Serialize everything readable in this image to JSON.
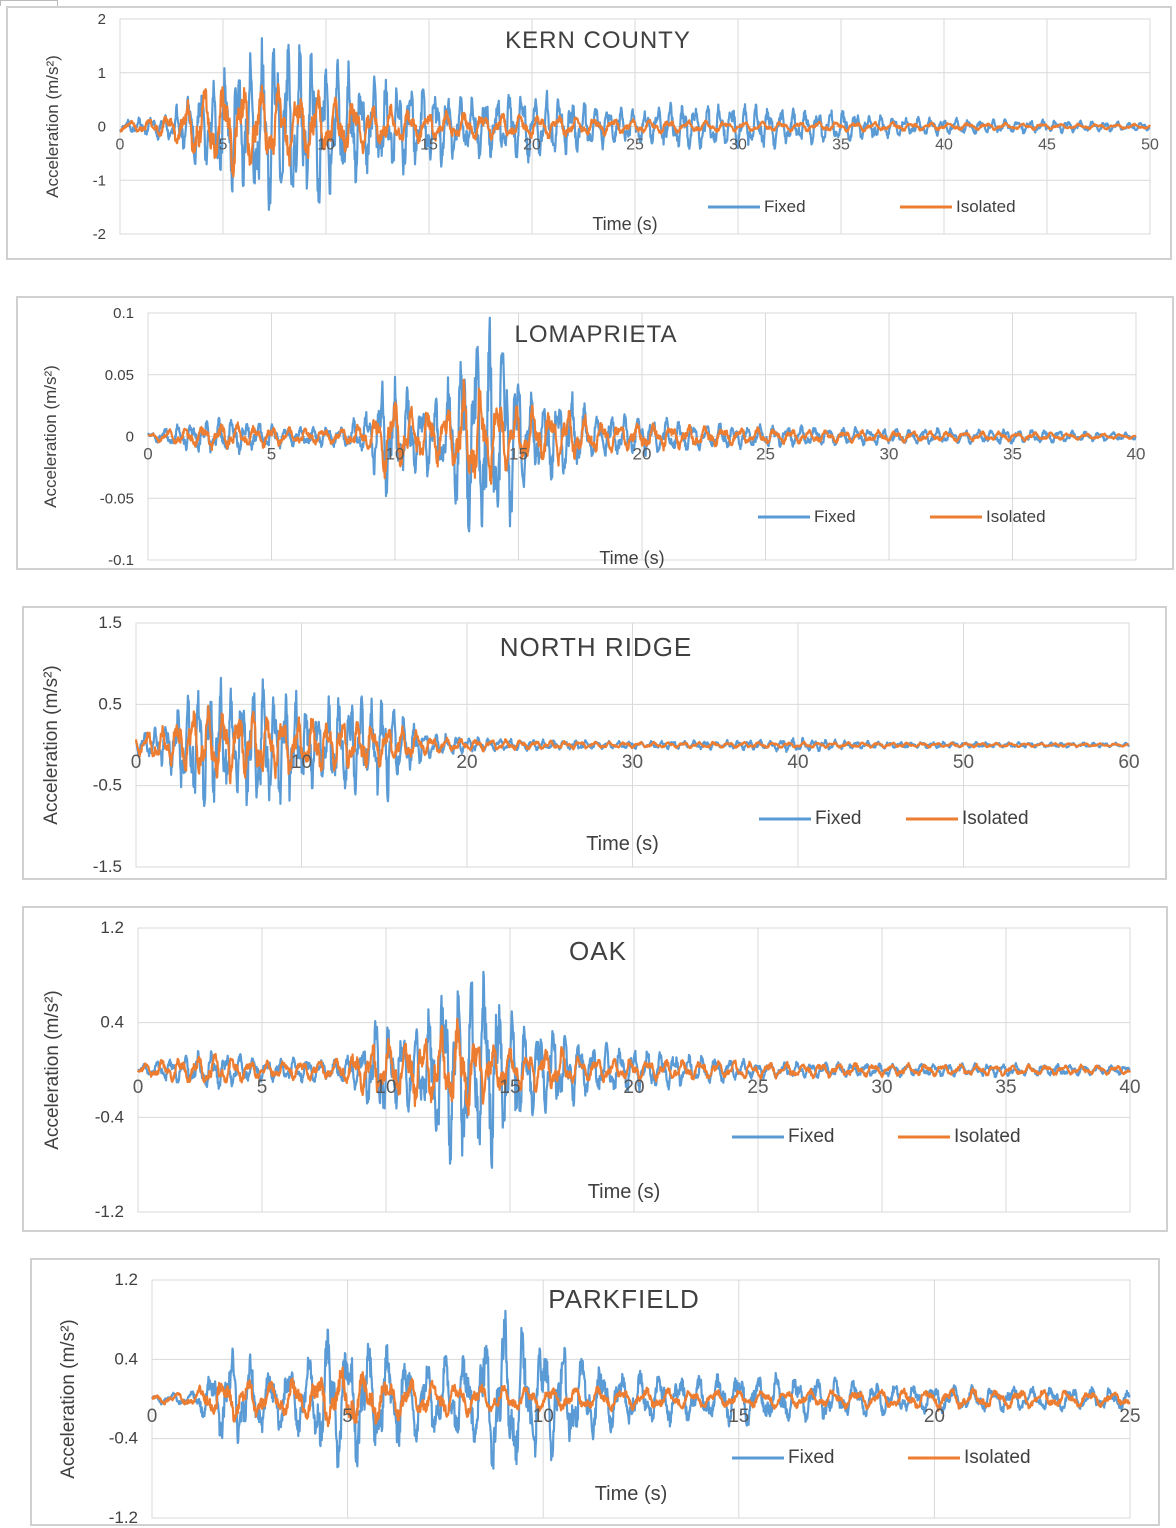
{
  "chart_data": [
    {
      "type": "line",
      "title": "KERN COUNTY",
      "xlabel": "Time (s)",
      "ylabel": "Acceleration (m/s²)",
      "xlim": [
        0,
        50
      ],
      "ylim": [
        -2,
        2
      ],
      "x_ticks": [
        "0",
        "5",
        "10",
        "15",
        "20",
        "25",
        "30",
        "35",
        "40",
        "45",
        "50"
      ],
      "y_ticks": [
        "2",
        "1",
        "0",
        "-1",
        "-2"
      ],
      "grid": true,
      "legend": "bottom-right",
      "series": [
        {
          "name": "Fixed",
          "color": "#5b9bd5",
          "period": 0.6,
          "envelope": [
            [
              0,
              0.1
            ],
            [
              2.5,
              0.3
            ],
            [
              4,
              0.9
            ],
            [
              6,
              1.4
            ],
            [
              7.5,
              1.9
            ],
            [
              10,
              1.5
            ],
            [
              12,
              1.0
            ],
            [
              15,
              0.9
            ],
            [
              17,
              0.6
            ],
            [
              20,
              0.7
            ],
            [
              23,
              0.45
            ],
            [
              25,
              0.35
            ],
            [
              27,
              0.45
            ],
            [
              30,
              0.5
            ],
            [
              33,
              0.35
            ],
            [
              35,
              0.35
            ],
            [
              38,
              0.2
            ],
            [
              42,
              0.15
            ],
            [
              46,
              0.12
            ],
            [
              50,
              0.08
            ]
          ]
        },
        {
          "name": "Isolated",
          "color": "#ed7d31",
          "period": 0.9,
          "envelope": [
            [
              0,
              0.1
            ],
            [
              2.5,
              0.25
            ],
            [
              4,
              0.8
            ],
            [
              6,
              0.95
            ],
            [
              8,
              0.8
            ],
            [
              10,
              0.65
            ],
            [
              13,
              0.4
            ],
            [
              15,
              0.3
            ],
            [
              20,
              0.25
            ],
            [
              25,
              0.15
            ],
            [
              30,
              0.1
            ],
            [
              35,
              0.1
            ],
            [
              40,
              0.08
            ],
            [
              45,
              0.06
            ],
            [
              50,
              0.05
            ]
          ]
        }
      ]
    },
    {
      "type": "line",
      "title": "LOMAPRIETA",
      "xlabel": "Time (s)",
      "ylabel": "Acceleration (m/s²)",
      "xlim": [
        0,
        40
      ],
      "ylim": [
        -0.1,
        0.1
      ],
      "x_ticks": [
        "0",
        "5",
        "10",
        "15",
        "20",
        "25",
        "30",
        "35",
        "40"
      ],
      "y_ticks": [
        "0.1",
        "0.05",
        "0",
        "-0.05",
        "-0.1"
      ],
      "grid": true,
      "legend": "bottom-right",
      "series": [
        {
          "name": "Fixed",
          "color": "#5b9bd5",
          "period": 0.55,
          "envelope": [
            [
              0,
              0.003
            ],
            [
              1,
              0.01
            ],
            [
              3,
              0.017
            ],
            [
              6,
              0.008
            ],
            [
              8,
              0.01
            ],
            [
              9,
              0.025
            ],
            [
              9.5,
              0.055
            ],
            [
              11,
              0.035
            ],
            [
              12,
              0.035
            ],
            [
              12.5,
              0.075
            ],
            [
              13.5,
              0.1
            ],
            [
              14.5,
              0.09
            ],
            [
              15.5,
              0.035
            ],
            [
              17,
              0.04
            ],
            [
              18,
              0.02
            ],
            [
              20,
              0.018
            ],
            [
              22,
              0.012
            ],
            [
              25,
              0.01
            ],
            [
              30,
              0.007
            ],
            [
              35,
              0.007
            ],
            [
              40,
              0.003
            ]
          ]
        },
        {
          "name": "Isolated",
          "color": "#ed7d31",
          "period": 0.7,
          "envelope": [
            [
              0,
              0.002
            ],
            [
              1,
              0.008
            ],
            [
              3,
              0.012
            ],
            [
              6,
              0.007
            ],
            [
              8,
              0.008
            ],
            [
              9,
              0.012
            ],
            [
              9.5,
              0.035
            ],
            [
              11,
              0.025
            ],
            [
              12,
              0.025
            ],
            [
              13,
              0.052
            ],
            [
              14,
              0.04
            ],
            [
              15,
              0.025
            ],
            [
              17,
              0.025
            ],
            [
              18,
              0.015
            ],
            [
              20,
              0.012
            ],
            [
              25,
              0.007
            ],
            [
              30,
              0.005
            ],
            [
              35,
              0.004
            ],
            [
              40,
              0.002
            ]
          ]
        }
      ]
    },
    {
      "type": "line",
      "title": "NORTH RIDGE",
      "xlabel": "Time (s)",
      "ylabel": "Acceleration (m/s²)",
      "xlim": [
        0,
        60
      ],
      "ylim": [
        -1.5,
        1.5
      ],
      "x_ticks": [
        "0",
        "10",
        "20",
        "30",
        "40",
        "50",
        "60"
      ],
      "y_ticks": [
        "1.5",
        "0.5",
        "-0.5",
        "-1.5"
      ],
      "grid": true,
      "legend": "bottom-right",
      "series": [
        {
          "name": "Fixed",
          "color": "#5b9bd5",
          "period": 0.65,
          "envelope": [
            [
              0,
              0.15
            ],
            [
              2,
              0.3
            ],
            [
              3,
              0.8
            ],
            [
              5,
              0.9
            ],
            [
              6,
              0.65
            ],
            [
              7,
              0.95
            ],
            [
              8,
              0.8
            ],
            [
              9,
              0.85
            ],
            [
              10,
              0.6
            ],
            [
              11,
              0.5
            ],
            [
              12,
              0.65
            ],
            [
              13,
              0.75
            ],
            [
              14,
              0.55
            ],
            [
              15,
              0.75
            ],
            [
              16,
              0.45
            ],
            [
              18,
              0.15
            ],
            [
              20,
              0.12
            ],
            [
              22,
              0.08
            ],
            [
              30,
              0.05
            ],
            [
              36,
              0.06
            ],
            [
              40,
              0.09
            ],
            [
              44,
              0.05
            ],
            [
              50,
              0.04
            ],
            [
              60,
              0.03
            ]
          ]
        },
        {
          "name": "Isolated",
          "color": "#ed7d31",
          "period": 0.9,
          "envelope": [
            [
              0,
              0.15
            ],
            [
              2,
              0.25
            ],
            [
              3,
              0.45
            ],
            [
              6,
              0.5
            ],
            [
              9,
              0.4
            ],
            [
              12,
              0.35
            ],
            [
              15,
              0.3
            ],
            [
              18,
              0.12
            ],
            [
              20,
              0.08
            ],
            [
              30,
              0.04
            ],
            [
              40,
              0.04
            ],
            [
              50,
              0.03
            ],
            [
              60,
              0.02
            ]
          ]
        }
      ]
    },
    {
      "type": "line",
      "title": "OAK",
      "xlabel": "Time (s)",
      "ylabel": "Acceleration (m/s²)",
      "xlim": [
        0,
        40
      ],
      "ylim": [
        -1.2,
        1.2
      ],
      "x_ticks": [
        "0",
        "5",
        "10",
        "15",
        "20",
        "25",
        "30",
        "35",
        "40"
      ],
      "y_ticks": [
        "1.2",
        "0.4",
        "-0.4",
        "-1.2"
      ],
      "grid": true,
      "legend": "bottom-right",
      "series": [
        {
          "name": "Fixed",
          "color": "#5b9bd5",
          "period": 0.55,
          "envelope": [
            [
              0,
              0.05
            ],
            [
              1,
              0.1
            ],
            [
              3,
              0.18
            ],
            [
              5,
              0.1
            ],
            [
              8,
              0.12
            ],
            [
              9,
              0.2
            ],
            [
              9.5,
              0.55
            ],
            [
              10.5,
              0.35
            ],
            [
              11.5,
              0.35
            ],
            [
              12,
              0.75
            ],
            [
              13,
              0.85
            ],
            [
              14,
              1.0
            ],
            [
              15,
              0.6
            ],
            [
              16,
              0.4
            ],
            [
              17,
              0.4
            ],
            [
              18,
              0.25
            ],
            [
              20,
              0.2
            ],
            [
              22,
              0.15
            ],
            [
              25,
              0.08
            ],
            [
              30,
              0.06
            ],
            [
              35,
              0.06
            ],
            [
              40,
              0.04
            ]
          ]
        },
        {
          "name": "Isolated",
          "color": "#ed7d31",
          "period": 0.7,
          "envelope": [
            [
              0,
              0.05
            ],
            [
              1,
              0.1
            ],
            [
              3,
              0.15
            ],
            [
              5,
              0.08
            ],
            [
              8,
              0.1
            ],
            [
              9.5,
              0.25
            ],
            [
              11,
              0.3
            ],
            [
              12,
              0.35
            ],
            [
              13,
              0.45
            ],
            [
              14,
              0.3
            ],
            [
              15,
              0.2
            ],
            [
              17,
              0.2
            ],
            [
              18,
              0.12
            ],
            [
              20,
              0.1
            ],
            [
              25,
              0.08
            ],
            [
              30,
              0.06
            ],
            [
              35,
              0.05
            ],
            [
              40,
              0.04
            ]
          ]
        }
      ]
    },
    {
      "type": "line",
      "title": "PARKFIELD",
      "xlabel": "Time (s)",
      "ylabel": "Acceleration (m/s²)",
      "xlim": [
        0,
        25
      ],
      "ylim": [
        -1.2,
        1.2
      ],
      "x_ticks": [
        "0",
        "5",
        "10",
        "15",
        "20",
        "25"
      ],
      "y_ticks": [
        "1.2",
        "0.4",
        "-0.4",
        "-1.2"
      ],
      "grid": true,
      "legend": "bottom-right",
      "series": [
        {
          "name": "Fixed",
          "color": "#5b9bd5",
          "period": 0.5,
          "envelope": [
            [
              0,
              0.05
            ],
            [
              1,
              0.08
            ],
            [
              1.5,
              0.3
            ],
            [
              2,
              0.6
            ],
            [
              2.5,
              0.5
            ],
            [
              3,
              0.35
            ],
            [
              4,
              0.5
            ],
            [
              4.5,
              0.8
            ],
            [
              5.5,
              0.65
            ],
            [
              6,
              0.6
            ],
            [
              7,
              0.4
            ],
            [
              8,
              0.5
            ],
            [
              9,
              0.95
            ],
            [
              10,
              0.7
            ],
            [
              11,
              0.5
            ],
            [
              12,
              0.3
            ],
            [
              14,
              0.25
            ],
            [
              15,
              0.3
            ],
            [
              17,
              0.25
            ],
            [
              18,
              0.2
            ],
            [
              20,
              0.15
            ],
            [
              22,
              0.14
            ],
            [
              25,
              0.12
            ]
          ]
        },
        {
          "name": "Isolated",
          "color": "#ed7d31",
          "period": 0.6,
          "envelope": [
            [
              0,
              0.05
            ],
            [
              1,
              0.08
            ],
            [
              1.5,
              0.2
            ],
            [
              2,
              0.25
            ],
            [
              3,
              0.2
            ],
            [
              4,
              0.25
            ],
            [
              5,
              0.35
            ],
            [
              6,
              0.25
            ],
            [
              7,
              0.2
            ],
            [
              8,
              0.18
            ],
            [
              9,
              0.15
            ],
            [
              10,
              0.14
            ],
            [
              12,
              0.12
            ],
            [
              15,
              0.1
            ],
            [
              18,
              0.1
            ],
            [
              20,
              0.12
            ],
            [
              23,
              0.1
            ],
            [
              25,
              0.08
            ]
          ]
        }
      ]
    }
  ]
}
